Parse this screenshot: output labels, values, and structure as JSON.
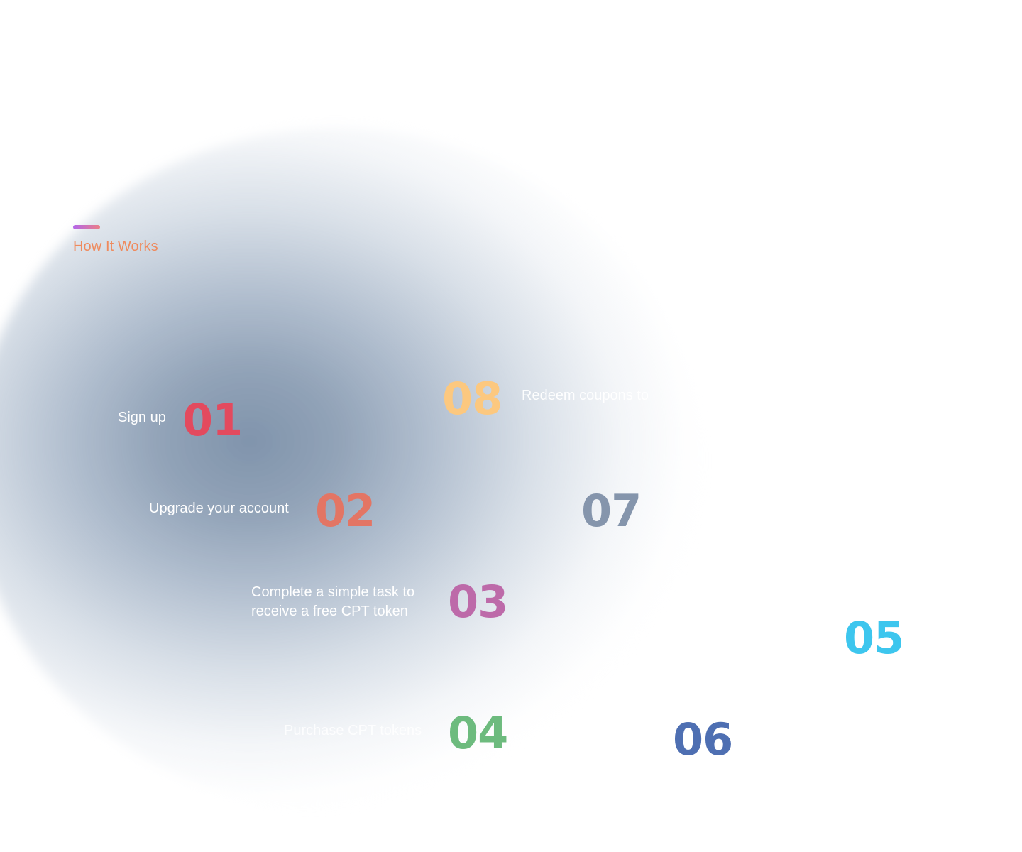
{
  "section": {
    "eyebrow": "How It Works"
  },
  "steps": [
    {
      "number": "01",
      "label": "Sign up",
      "color": "#e34a5e"
    },
    {
      "number": "02",
      "label": "Upgrade your account",
      "color": "#e37564"
    },
    {
      "number": "03",
      "label_line1": "Complete a simple task to",
      "label_line2": "receive a free CPT token",
      "color": "#bd6aa9"
    },
    {
      "number": "04",
      "label": "Purchase CPT tokens",
      "color": "#6dbb7e"
    },
    {
      "number": "05",
      "label": "",
      "color": "#3dc6ee"
    },
    {
      "number": "06",
      "label": "",
      "color": "#4e6fb2"
    },
    {
      "number": "07",
      "label": "",
      "color": "#8595ac"
    },
    {
      "number": "08",
      "label": "Redeem coupons to",
      "color": "#fcc87f"
    }
  ],
  "colors": {
    "eyebrow_text": "#ef8a5d",
    "eyebrow_bar_start": "#b266ea",
    "eyebrow_bar_end": "#ec7f86"
  }
}
